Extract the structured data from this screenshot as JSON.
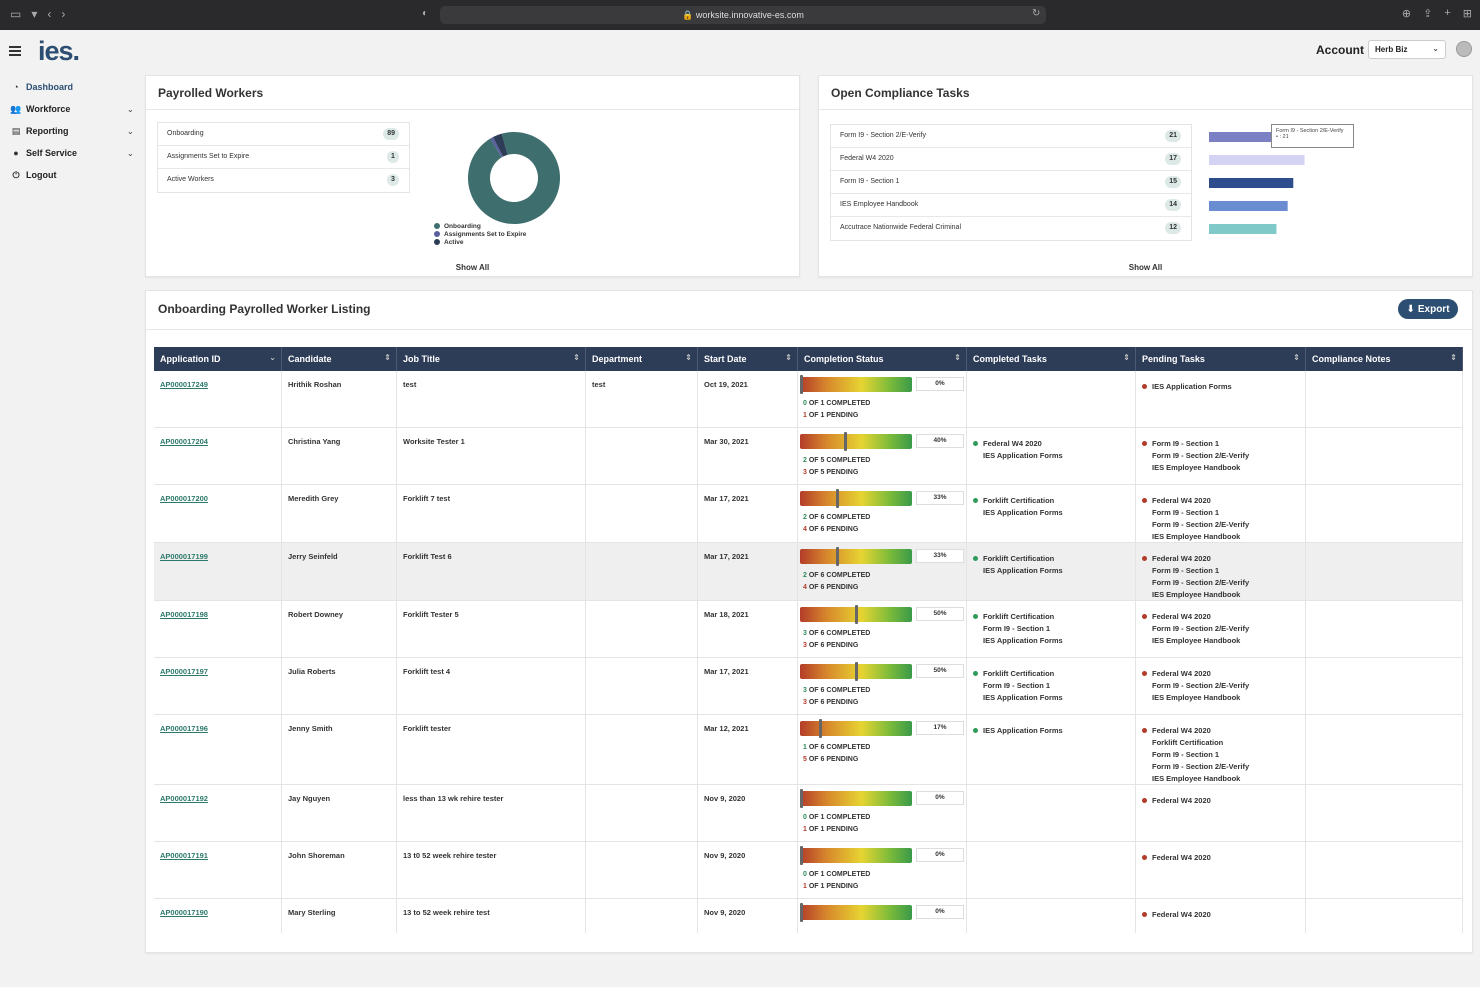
{
  "browser": {
    "url": "worksite.innovative-es.com"
  },
  "header": {
    "logo": "ies.",
    "account_label": "Account",
    "account_value": "Herb Biz"
  },
  "sidebar": {
    "items": [
      {
        "label": "Dashboard",
        "icon": "dashboard-icon"
      },
      {
        "label": "Workforce",
        "icon": "users-icon"
      },
      {
        "label": "Reporting",
        "icon": "document-icon"
      },
      {
        "label": "Self Service",
        "icon": "user-icon"
      },
      {
        "label": "Logout",
        "icon": "power-icon"
      }
    ]
  },
  "payrolled": {
    "title": "Payrolled Workers",
    "show_all": "Show All",
    "rows": [
      {
        "label": "Onboarding",
        "count": "89"
      },
      {
        "label": "Assignments Set to Expire",
        "count": "1"
      },
      {
        "label": "Active Workers",
        "count": "3"
      }
    ],
    "legend": [
      "Onboarding",
      "Assignments Set to Expire",
      "Active"
    ],
    "colors": {
      "onboarding": "#3f6e6e",
      "expire": "#5a5f9e",
      "active": "#2d3d57"
    }
  },
  "compliance": {
    "title": "Open Compliance Tasks",
    "show_all": "Show All",
    "rows": [
      {
        "label": "Form I9 - Section 2/E-Verify",
        "count": "21"
      },
      {
        "label": "Federal W4 2020",
        "count": "17"
      },
      {
        "label": "Form I9 - Section 1",
        "count": "15"
      },
      {
        "label": "IES Employee Handbook",
        "count": "14"
      },
      {
        "label": "Accutrace Nationwide Federal Criminal",
        "count": "12"
      }
    ],
    "tooltip": {
      "label": "Form I9 - Section 2/E-Verify",
      "value": "• : 21"
    }
  },
  "chart_data": [
    {
      "type": "pie",
      "categories": [
        "Onboarding",
        "Assignments Set to Expire",
        "Active"
      ],
      "values": [
        89,
        1,
        3
      ],
      "colors": [
        "#3f6e6e",
        "#5a5f9e",
        "#2d3d57"
      ]
    },
    {
      "type": "bar",
      "orientation": "horizontal",
      "categories": [
        "Form I9 - Section 2/E-Verify",
        "Federal W4 2020",
        "Form I9 - Section 1",
        "IES Employee Handbook",
        "Accutrace Nationwide Federal Criminal"
      ],
      "values": [
        21,
        17,
        15,
        14,
        12
      ],
      "colors": [
        "#7b7fc4",
        "#d4d3f3",
        "#2e4d8c",
        "#6a8cd0",
        "#7fcac8"
      ]
    }
  ],
  "listing": {
    "title": "Onboarding Payrolled Worker Listing",
    "export_label": "Export",
    "columns": [
      "Application ID",
      "Candidate",
      "Job Title",
      "Department",
      "Start Date",
      "Completion Status",
      "Completed Tasks",
      "Pending Tasks",
      "Compliance Notes"
    ],
    "rows": [
      {
        "id": "AP000017249",
        "candidate": "Hrithik Roshan",
        "job": "test",
        "dept": "test",
        "start": "Oct 19, 2021",
        "pct": 0,
        "pct_label": "0%",
        "done": "0",
        "total": "1",
        "pending": "1",
        "completed_tasks": [],
        "pending_tasks": [
          "IES Application Forms"
        ]
      },
      {
        "id": "AP000017204",
        "candidate": "Christina Yang",
        "job": "Worksite Tester 1",
        "dept": "",
        "start": "Mar 30, 2021",
        "pct": 40,
        "pct_label": "40%",
        "done": "2",
        "total": "5",
        "pending": "3",
        "completed_tasks": [
          "Federal W4 2020",
          "IES Application Forms"
        ],
        "pending_tasks": [
          "Form I9 - Section 1",
          "Form I9 - Section 2/E-Verify",
          "IES Employee Handbook"
        ]
      },
      {
        "id": "AP000017200",
        "candidate": "Meredith Grey",
        "job": "Forklift 7 test",
        "dept": "",
        "start": "Mar 17, 2021",
        "pct": 33,
        "pct_label": "33%",
        "done": "2",
        "total": "6",
        "pending": "4",
        "completed_tasks": [
          "Forklift Certification",
          "IES Application Forms"
        ],
        "pending_tasks": [
          "Federal W4 2020",
          "Form I9 - Section 1",
          "Form I9 - Section 2/E-Verify",
          "IES Employee Handbook"
        ]
      },
      {
        "id": "AP000017199",
        "candidate": "Jerry Seinfeld",
        "job": "Forklift Test 6",
        "dept": "",
        "start": "Mar 17, 2021",
        "pct": 33,
        "pct_label": "33%",
        "done": "2",
        "total": "6",
        "pending": "4",
        "completed_tasks": [
          "Forklift Certification",
          "IES Application Forms"
        ],
        "pending_tasks": [
          "Federal W4 2020",
          "Form I9 - Section 1",
          "Form I9 - Section 2/E-Verify",
          "IES Employee Handbook"
        ]
      },
      {
        "id": "AP000017198",
        "candidate": "Robert Downey",
        "job": "Forklift Tester 5",
        "dept": "",
        "start": "Mar 18, 2021",
        "pct": 50,
        "pct_label": "50%",
        "done": "3",
        "total": "6",
        "pending": "3",
        "completed_tasks": [
          "Forklift Certification",
          "Form I9 - Section 1",
          "IES Application Forms"
        ],
        "pending_tasks": [
          "Federal W4 2020",
          "Form I9 - Section 2/E-Verify",
          "IES Employee Handbook"
        ]
      },
      {
        "id": "AP000017197",
        "candidate": "Julia Roberts",
        "job": "Forklift test 4",
        "dept": "",
        "start": "Mar 17, 2021",
        "pct": 50,
        "pct_label": "50%",
        "done": "3",
        "total": "6",
        "pending": "3",
        "completed_tasks": [
          "Forklift Certification",
          "Form I9 - Section 1",
          "IES Application Forms"
        ],
        "pending_tasks": [
          "Federal W4 2020",
          "Form I9 - Section 2/E-Verify",
          "IES Employee Handbook"
        ]
      },
      {
        "id": "AP000017196",
        "candidate": "Jenny Smith",
        "job": "Forklift tester",
        "dept": "",
        "start": "Mar 12, 2021",
        "pct": 17,
        "pct_label": "17%",
        "done": "1",
        "total": "6",
        "pending": "5",
        "completed_tasks": [
          "IES Application Forms"
        ],
        "pending_tasks": [
          "Federal W4 2020",
          "Forklift Certification",
          "Form I9 - Section 1",
          "Form I9 - Section 2/E-Verify",
          "IES Employee Handbook"
        ]
      },
      {
        "id": "AP000017192",
        "candidate": "Jay Nguyen",
        "job": "less than 13 wk rehire tester",
        "dept": "",
        "start": "Nov 9, 2020",
        "pct": 0,
        "pct_label": "0%",
        "done": "0",
        "total": "1",
        "pending": "1",
        "completed_tasks": [],
        "pending_tasks": [
          "Federal W4 2020"
        ]
      },
      {
        "id": "AP000017191",
        "candidate": "John Shoreman",
        "job": "13 t0 52 week rehire tester",
        "dept": "",
        "start": "Nov 9, 2020",
        "pct": 0,
        "pct_label": "0%",
        "done": "0",
        "total": "1",
        "pending": "1",
        "completed_tasks": [],
        "pending_tasks": [
          "Federal W4 2020"
        ]
      },
      {
        "id": "AP000017190",
        "candidate": "Mary Sterling",
        "job": "13 to 52 week rehire test",
        "dept": "",
        "start": "Nov 9, 2020",
        "pct": 0,
        "pct_label": "0%",
        "done": "",
        "total": "",
        "pending": "",
        "completed_tasks": [],
        "pending_tasks": [
          "Federal W4 2020"
        ]
      }
    ],
    "labels": {
      "of": "OF",
      "completed": "COMPLETED",
      "pending": "PENDING"
    }
  },
  "colors": {
    "accent": "#2d4e73",
    "header_bg": "#2d3d57",
    "link": "#2d7a6b",
    "done_dot": "#2f9a5a",
    "pending_dot": "#b13c2a"
  }
}
